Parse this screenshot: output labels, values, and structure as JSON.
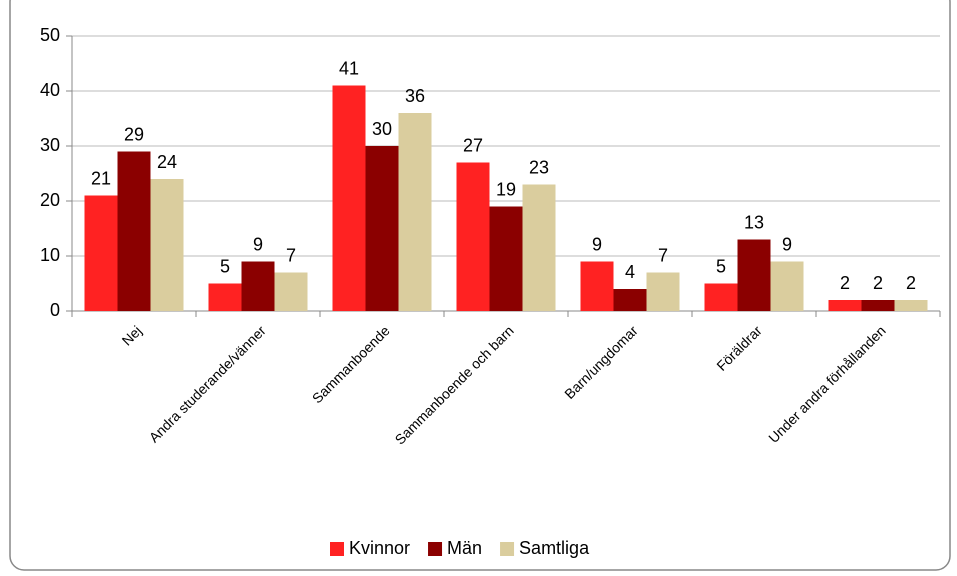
{
  "chart_data": {
    "type": "bar",
    "categories": [
      "Nej",
      "Andra studerande/vänner",
      "Sammanboende",
      "Sammanboende och barn",
      "Barn/ungdomar",
      "Föräldrar",
      "Under andra förhållanden"
    ],
    "series": [
      {
        "name": "Kvinnor",
        "color": "#ff2222",
        "values": [
          21,
          5,
          41,
          27,
          9,
          5,
          2
        ]
      },
      {
        "name": "Män",
        "color": "#8b0000",
        "values": [
          29,
          9,
          30,
          19,
          4,
          13,
          2
        ]
      },
      {
        "name": "Samtliga",
        "color": "#dacd9e",
        "values": [
          24,
          7,
          36,
          23,
          7,
          9,
          2
        ]
      }
    ],
    "ylim": [
      0,
      50
    ],
    "yticks": [
      0,
      10,
      20,
      30,
      40,
      50
    ],
    "grid": true,
    "legend": "bottom"
  }
}
